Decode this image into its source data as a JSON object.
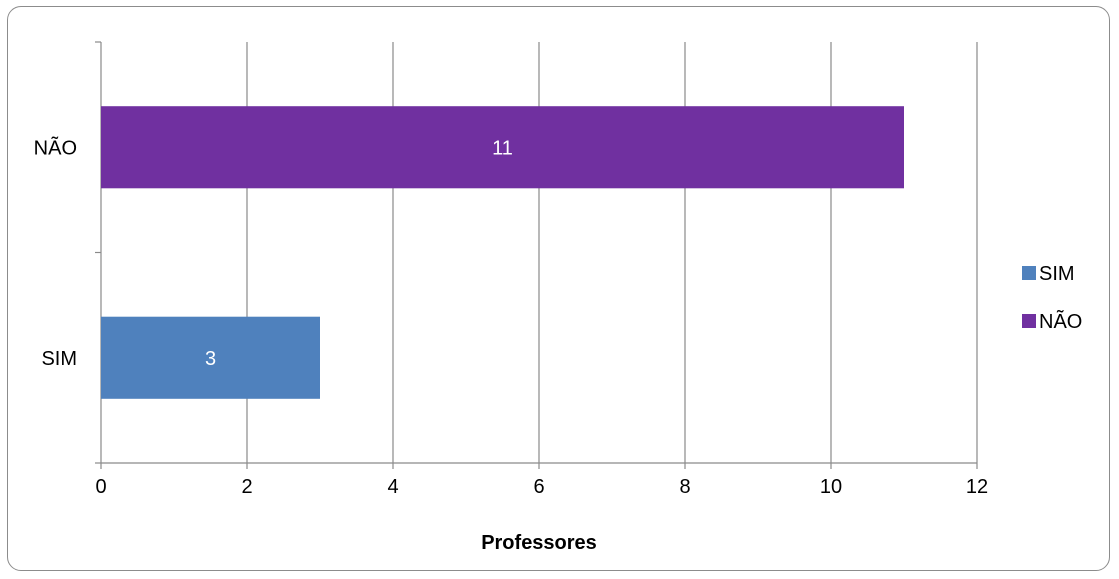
{
  "chart_data": {
    "type": "bar",
    "orientation": "horizontal",
    "categories": [
      "SIM",
      "NÃO"
    ],
    "series": [
      {
        "name": "SIM",
        "category": "SIM",
        "value": 3,
        "color": "#4f81bd"
      },
      {
        "name": "NÃO",
        "category": "NÃO",
        "value": 11,
        "color": "#7030a0"
      }
    ],
    "xlabel": "Professores",
    "ylabel": "",
    "xlim": [
      0,
      12
    ],
    "xticks": [
      "0",
      "2",
      "4",
      "6",
      "8",
      "10",
      "12"
    ],
    "grid": true,
    "legend_position": "right"
  }
}
